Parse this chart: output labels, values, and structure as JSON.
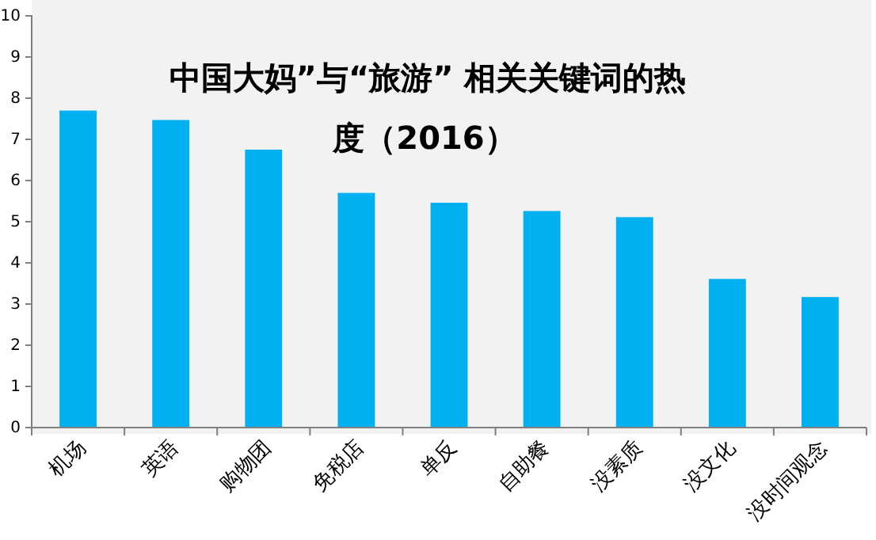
{
  "chart_data": {
    "type": "bar",
    "title": "中国大妈”与“旅游” 相关关键词的热度（2016）",
    "categories": [
      "机场",
      "英语",
      "购物团",
      "免税店",
      "单反",
      "自助餐",
      "没素质",
      "没文化",
      "没时间观念"
    ],
    "values": [
      7.7,
      7.47,
      6.75,
      5.7,
      5.46,
      5.26,
      5.11,
      3.61,
      3.17
    ],
    "color": "#00b0f0",
    "ylim": [
      0,
      10
    ],
    "yticks": [
      0,
      1,
      2,
      3,
      4,
      5,
      6,
      7,
      8,
      9,
      10
    ],
    "grid": false
  }
}
